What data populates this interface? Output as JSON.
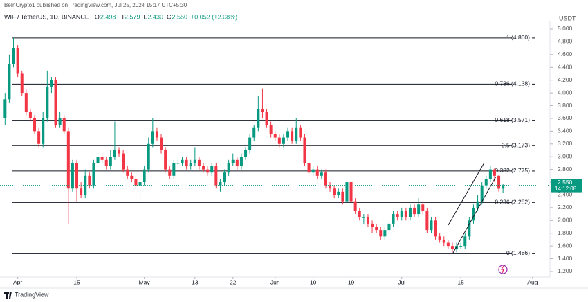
{
  "header": {
    "published": "BeInCrypto1 published on TradingView.com, Jul 25, 2024 15:17 UTC+5:30",
    "symbol": "WIF / TetherUS, 1D, BINANCE",
    "ohlc": [
      {
        "key": "O",
        "value": "2.498"
      },
      {
        "key": "H",
        "value": "2.579"
      },
      {
        "key": "L",
        "value": "2.430"
      },
      {
        "key": "C",
        "value": "2.550"
      }
    ],
    "change": "+0.052 (+2.08%)",
    "currency": "USDT"
  },
  "footer": {
    "brand": "TradingView"
  },
  "chart_data": {
    "type": "candlestick",
    "up_color": "#089981",
    "down_color": "#f23645",
    "open": [
      3.6,
      3.9,
      4.45,
      4.7,
      4.3,
      4.0,
      3.7,
      3.6,
      3.4,
      3.2,
      3.6,
      4.1,
      4.2,
      3.5,
      3.6,
      3.4,
      2.5,
      2.9,
      2.5,
      2.4,
      2.7,
      2.55,
      2.9,
      3.0,
      2.95,
      2.85,
      3.0,
      3.1,
      3.05,
      2.8,
      2.7,
      2.65,
      2.55,
      2.6,
      2.8,
      3.2,
      3.4,
      3.3,
      3.1,
      2.8,
      2.7,
      2.9,
      2.9,
      2.95,
      2.85,
      2.9,
      2.95,
      2.85,
      2.8,
      2.75,
      2.85,
      2.55,
      2.6,
      2.75,
      2.9,
      2.95,
      2.85,
      3.0,
      3.1,
      3.3,
      3.45,
      3.75,
      3.7,
      3.5,
      3.35,
      3.3,
      3.2,
      3.3,
      3.4,
      3.25,
      3.45,
      3.3,
      2.9,
      2.75,
      2.8,
      2.7,
      2.75,
      2.55,
      2.5,
      2.4,
      2.45,
      2.3,
      2.6,
      2.3,
      2.15,
      2.05,
      2.05,
      1.95,
      1.9,
      1.85,
      1.75,
      1.85,
      1.95,
      2.1,
      2.05,
      2.15,
      2.05,
      2.2,
      2.1,
      2.25,
      2.15,
      1.85,
      2.0,
      1.75,
      1.7,
      1.65,
      1.6,
      1.55,
      1.6,
      1.6,
      1.75,
      2.0,
      2.2,
      2.3,
      2.55,
      2.65,
      2.8,
      2.7,
      2.498
    ],
    "high": [
      4.0,
      4.6,
      4.86,
      4.75,
      4.35,
      4.05,
      3.75,
      3.65,
      3.45,
      3.7,
      4.35,
      4.25,
      4.25,
      3.7,
      3.65,
      3.45,
      2.95,
      2.95,
      2.6,
      2.8,
      2.75,
      2.95,
      3.1,
      3.05,
      3.0,
      3.1,
      3.55,
      3.15,
      3.1,
      2.85,
      2.75,
      2.7,
      2.65,
      2.85,
      3.3,
      3.6,
      3.45,
      3.35,
      3.15,
      2.85,
      2.95,
      3.0,
      3.0,
      3.0,
      2.95,
      3.15,
      3.0,
      2.9,
      2.85,
      2.9,
      2.9,
      2.65,
      2.8,
      2.95,
      3.05,
      3.0,
      3.05,
      3.15,
      3.35,
      3.5,
      3.95,
      4.07,
      3.75,
      3.55,
      3.4,
      3.35,
      3.35,
      3.45,
      3.45,
      3.6,
      3.5,
      3.35,
      2.95,
      2.85,
      2.85,
      2.8,
      2.8,
      2.6,
      2.55,
      2.5,
      2.5,
      2.65,
      2.6,
      2.35,
      2.2,
      2.1,
      2.1,
      2.0,
      1.95,
      1.9,
      1.9,
      2.0,
      2.15,
      2.15,
      2.2,
      2.2,
      2.25,
      2.25,
      2.35,
      2.3,
      2.2,
      2.05,
      2.05,
      1.8,
      1.75,
      1.7,
      1.65,
      1.65,
      1.65,
      1.8,
      2.05,
      2.25,
      2.4,
      2.6,
      2.7,
      2.85,
      2.82,
      2.72,
      2.579
    ],
    "low": [
      3.5,
      3.85,
      4.4,
      4.25,
      3.95,
      3.65,
      3.55,
      3.35,
      3.15,
      3.15,
      3.55,
      4.0,
      3.45,
      3.45,
      3.35,
      1.95,
      2.45,
      2.3,
      2.35,
      2.35,
      2.5,
      2.5,
      2.85,
      2.9,
      2.8,
      2.8,
      2.95,
      3.0,
      2.75,
      2.65,
      2.6,
      2.5,
      2.3,
      2.55,
      2.75,
      3.15,
      3.25,
      3.05,
      2.75,
      2.65,
      2.65,
      2.85,
      2.85,
      2.8,
      2.8,
      2.85,
      2.8,
      2.75,
      2.7,
      2.7,
      2.5,
      2.45,
      2.55,
      2.7,
      2.85,
      2.8,
      2.8,
      2.95,
      3.05,
      3.25,
      3.4,
      3.6,
      3.45,
      3.3,
      3.25,
      3.15,
      3.15,
      3.25,
      3.2,
      3.2,
      3.25,
      2.85,
      2.7,
      2.7,
      2.65,
      2.65,
      2.5,
      2.45,
      2.35,
      2.35,
      2.25,
      2.25,
      2.25,
      2.1,
      2.0,
      1.95,
      1.9,
      1.8,
      1.8,
      1.7,
      1.7,
      1.8,
      1.9,
      2.0,
      2.0,
      2.0,
      2.0,
      2.05,
      2.05,
      2.1,
      1.8,
      1.8,
      1.7,
      1.65,
      1.6,
      1.55,
      1.5,
      1.5,
      1.55,
      1.55,
      1.7,
      1.95,
      2.15,
      2.25,
      2.5,
      2.6,
      2.6,
      2.45,
      2.43
    ],
    "close": [
      3.9,
      4.45,
      4.7,
      4.3,
      4.0,
      3.7,
      3.6,
      3.4,
      3.2,
      3.6,
      4.1,
      4.2,
      3.5,
      3.6,
      3.4,
      2.5,
      2.9,
      2.5,
      2.4,
      2.7,
      2.55,
      2.9,
      3.0,
      2.95,
      2.85,
      3.0,
      3.1,
      3.05,
      2.8,
      2.7,
      2.65,
      2.55,
      2.6,
      2.8,
      3.2,
      3.4,
      3.3,
      3.1,
      2.8,
      2.7,
      2.9,
      2.9,
      2.95,
      2.85,
      2.9,
      2.95,
      2.85,
      2.8,
      2.75,
      2.85,
      2.55,
      2.6,
      2.75,
      2.9,
      2.95,
      2.85,
      3.0,
      3.1,
      3.3,
      3.45,
      3.75,
      3.7,
      3.5,
      3.35,
      3.3,
      3.2,
      3.3,
      3.4,
      3.25,
      3.45,
      3.3,
      2.9,
      2.75,
      2.8,
      2.7,
      2.75,
      2.55,
      2.5,
      2.4,
      2.45,
      2.3,
      2.6,
      2.3,
      2.15,
      2.05,
      2.05,
      1.95,
      1.9,
      1.85,
      1.75,
      1.85,
      1.95,
      2.1,
      2.05,
      2.15,
      2.05,
      2.2,
      2.1,
      2.25,
      2.15,
      1.85,
      2.0,
      1.75,
      1.7,
      1.65,
      1.6,
      1.55,
      1.6,
      1.6,
      1.75,
      2.0,
      2.2,
      2.3,
      2.55,
      2.65,
      2.8,
      2.7,
      2.498,
      2.55
    ],
    "xlim": [
      -1.2,
      128.3
    ],
    "xticks": [
      {
        "value": 3,
        "label": "Apr"
      },
      {
        "value": 17,
        "label": "15"
      },
      {
        "value": 33,
        "label": "May"
      },
      {
        "value": 45,
        "label": "13"
      },
      {
        "value": 54,
        "label": "22"
      },
      {
        "value": 64,
        "label": "Jun"
      },
      {
        "value": 73,
        "label": "10"
      },
      {
        "value": 82,
        "label": "19"
      },
      {
        "value": 94,
        "label": "Jul"
      },
      {
        "value": 108,
        "label": "15"
      },
      {
        "value": 125,
        "label": "Aug"
      }
    ],
    "ylim": [
      1.113,
      5.152
    ],
    "yticks": [
      {
        "value": 5.0,
        "label": "5.000"
      },
      {
        "value": 4.8,
        "label": "4.800"
      },
      {
        "value": 4.6,
        "label": "4.600"
      },
      {
        "value": 4.4,
        "label": "4.400"
      },
      {
        "value": 4.2,
        "label": "4.200"
      },
      {
        "value": 4.0,
        "label": "4.000"
      },
      {
        "value": 3.8,
        "label": "3.800"
      },
      {
        "value": 3.6,
        "label": "3.600"
      },
      {
        "value": 3.4,
        "label": "3.400"
      },
      {
        "value": 3.2,
        "label": "3.200"
      },
      {
        "value": 3.0,
        "label": "3.000"
      },
      {
        "value": 2.8,
        "label": "2.800"
      },
      {
        "value": 2.6,
        "label": "2.600"
      },
      {
        "value": 2.4,
        "label": "2.400"
      },
      {
        "value": 2.2,
        "label": "2.200"
      },
      {
        "value": 2.0,
        "label": "2.000"
      },
      {
        "value": 1.8,
        "label": "1.800"
      },
      {
        "value": 1.6,
        "label": "1.600"
      },
      {
        "value": 1.4,
        "label": "1.400"
      },
      {
        "value": 1.2,
        "label": "1.200"
      }
    ],
    "fib_levels": [
      {
        "value": 4.86,
        "label": "1 (4.860)"
      },
      {
        "value": 4.138,
        "label": "0.786 (4.138)"
      },
      {
        "value": 3.571,
        "label": "0.618 (3.571)"
      },
      {
        "value": 3.173,
        "label": "0.5 (3.173)"
      },
      {
        "value": 2.775,
        "label": "0.382 (2.775)"
      },
      {
        "value": 2.282,
        "label": "0.236 (2.282)"
      },
      {
        "value": 1.486,
        "label": "0 (1.486)"
      }
    ],
    "last_price": {
      "value": 2.55,
      "label": "2.550",
      "countdown": "14:12:08"
    }
  }
}
